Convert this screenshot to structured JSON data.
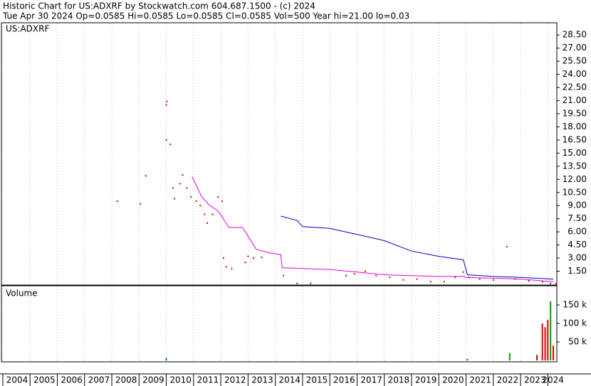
{
  "chart_data": [
    {
      "type": "scatter",
      "title": "Historic Chart for US:ADXRF by Stockwatch.com 604.687.1500 - (c) 2024",
      "subtitle": "Tue Apr 30 2024  Op=0.0585  Hi=0.0585  Lo=0.0585  Cl=0.0585  Vol=500  Year hi=21.00  lo=0.03",
      "label": "US:ADXRF",
      "color": "#e00000",
      "x": [
        2008.2,
        2009.05,
        2009.25,
        2010.0,
        2010.02,
        2010.0,
        2010.15,
        2010.25,
        2010.3,
        2010.5,
        2010.6,
        2010.75,
        2010.9,
        2011.1,
        2011.25,
        2011.4,
        2011.5,
        2011.7,
        2011.9,
        2012.05,
        2012.1,
        2012.2,
        2012.4,
        2012.9,
        2013.0,
        2013.2,
        2013.5,
        2014.3,
        2014.8,
        2015.3,
        2016.6,
        2016.9,
        2017.3,
        2017.7,
        2018.2,
        2018.7,
        2019.2,
        2019.7,
        2020.2,
        2020.6,
        2020.9,
        2021.1,
        2021.5,
        2022.0,
        2022.5,
        2022.8,
        2023.3,
        2023.8,
        2024.1,
        2024.3
      ],
      "values": [
        9.5,
        9.2,
        12.4,
        20.5,
        20.9,
        16.5,
        16.0,
        11.0,
        9.8,
        11.5,
        12.5,
        11.0,
        10.0,
        9.5,
        9.0,
        8.0,
        7.0,
        8.0,
        10.0,
        9.5,
        3.0,
        2.0,
        1.8,
        2.5,
        3.2,
        3.0,
        3.1,
        1.0,
        0.1,
        0.1,
        1.0,
        1.2,
        1.5,
        1.0,
        0.8,
        0.5,
        0.6,
        0.3,
        0.3,
        0.8,
        1.4,
        0.8,
        0.6,
        0.5,
        4.3,
        0.6,
        0.4,
        0.3,
        0.1,
        0.06
      ],
      "xlim": [
        2003.95,
        2024.33
      ],
      "ylim": [
        0,
        29.9
      ],
      "xticks": [
        2004,
        2005,
        2006,
        2007,
        2008,
        2009,
        2010,
        2011,
        2012,
        2013,
        2014,
        2015,
        2016,
        2017,
        2018,
        2019,
        2020,
        2021,
        2022,
        2023,
        2024
      ],
      "yticks": [
        {
          "value": 1.5,
          "label": "1.50"
        },
        {
          "value": 3,
          "label": "3.00"
        },
        {
          "value": 4.5,
          "label": "4.50"
        },
        {
          "value": 6,
          "label": "6.00"
        },
        {
          "value": 7.5,
          "label": "7.50"
        },
        {
          "value": 9,
          "label": "9.00"
        },
        {
          "value": 10.5,
          "label": "10.50"
        },
        {
          "value": 12,
          "label": "12.00"
        },
        {
          "value": 13.5,
          "label": "13.50"
        },
        {
          "value": 15,
          "label": "15.00"
        },
        {
          "value": 16.5,
          "label": "16.50"
        },
        {
          "value": 18,
          "label": "18.00"
        },
        {
          "value": 19.5,
          "label": "19.50"
        },
        {
          "value": 21,
          "label": "21.00"
        },
        {
          "value": 22.5,
          "label": "22.50"
        },
        {
          "value": 24,
          "label": "24.00"
        },
        {
          "value": 25.5,
          "label": "25.50"
        },
        {
          "value": 27,
          "label": "27.00"
        },
        {
          "value": 28.5,
          "label": "28.50"
        }
      ],
      "grid": true,
      "overlay": {
        "type": "line",
        "series": [
          {
            "color": "#e000e0",
            "x": [
              2010.95,
              2011.3,
              2011.6,
              2011.9,
              2012.3,
              2012.8,
              2013.0,
              2013.3,
              2013.8,
              2014.2,
              2014.25,
              2015,
              2016,
              2017,
              2018,
              2019,
              2020,
              2020.9,
              2021.0,
              2022,
              2023,
              2024.2
            ],
            "values": [
              12.3,
              10,
              9,
              8.4,
              6.5,
              6.5,
              5.5,
              4,
              3.6,
              3.4,
              1.9,
              1.8,
              1.7,
              1.4,
              1.1,
              1.0,
              0.9,
              0.9,
              0.8,
              0.7,
              0.6,
              0.3
            ]
          },
          {
            "color": "#0000c0",
            "x": [
              2014.2,
              2014.8,
              2015.0,
              2016,
              2017,
              2018,
              2019,
              2020,
              2020.9,
              2021.05,
              2022,
              2023,
              2024.2
            ],
            "values": [
              7.8,
              7.3,
              6.6,
              6.4,
              5.7,
              5.0,
              3.8,
              3.2,
              2.8,
              1.1,
              0.9,
              0.8,
              0.6
            ]
          }
        ]
      }
    },
    {
      "type": "bar",
      "label": "Volume",
      "xlim": [
        2003.95,
        2024.33
      ],
      "ylim": [
        0,
        200000
      ],
      "yticks": [
        {
          "value": 50000,
          "label": "50 k"
        },
        {
          "value": 100000,
          "label": "100 k"
        },
        {
          "value": 150000,
          "label": "150 k"
        }
      ],
      "series": [
        {
          "color": "#00a000",
          "x": [
            2010.0,
            2022.6,
            2024.1
          ],
          "values": [
            7000,
            20000,
            160000
          ]
        },
        {
          "color": "#e00000",
          "x": [
            2021.05,
            2023.6,
            2023.8,
            2023.9,
            2024.0,
            2024.2
          ],
          "values": [
            4000,
            15000,
            100000,
            90000,
            110000,
            40000
          ]
        }
      ]
    }
  ]
}
